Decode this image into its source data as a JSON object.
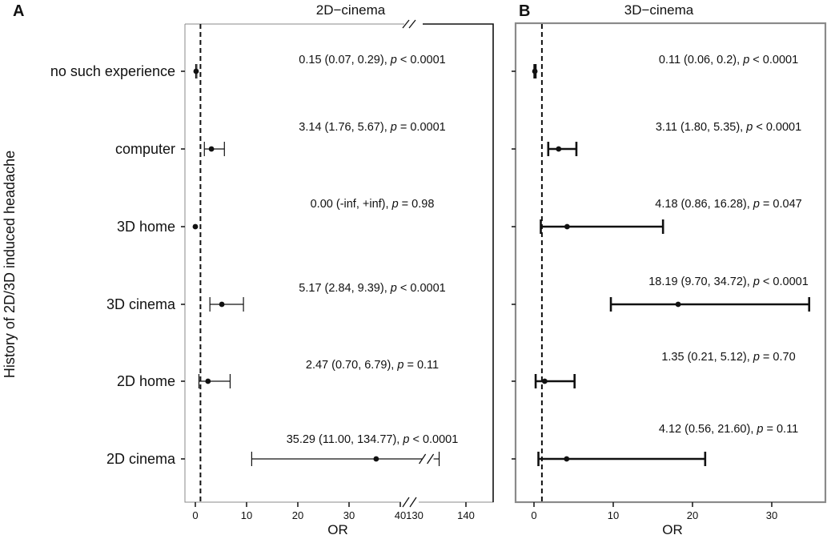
{
  "figure": {
    "ylabel": "History of 2D/3D induced headache",
    "categories": [
      "no such experience",
      "computer",
      "3D home",
      "3D cinema",
      "2D home",
      "2D cinema"
    ]
  },
  "chart_data": [
    {
      "type": "forest",
      "panel": "A",
      "title": "2D−cinema",
      "xlabel": "OR",
      "reference_line": 1,
      "axis_break": [
        44,
        126
      ],
      "xlim": [
        -2,
        147
      ],
      "xticks": [
        0,
        10,
        20,
        30,
        40,
        130,
        140
      ],
      "categories": [
        "no such experience",
        "computer",
        "3D home",
        "3D cinema",
        "2D home",
        "2D cinema"
      ],
      "points": [
        {
          "category": "no such experience",
          "or": 0.15,
          "lo": 0.07,
          "hi": 0.29,
          "est": "0.15 (0.07, 0.29), ",
          "p": "p",
          "pval": " < 0.0001"
        },
        {
          "category": "computer",
          "or": 3.14,
          "lo": 1.76,
          "hi": 5.67,
          "est": "3.14 (1.76, 5.67), ",
          "p": "p",
          "pval": " = 0.0001"
        },
        {
          "category": "3D home",
          "or": 0.0,
          "lo": null,
          "hi": null,
          "est": "0.00 (-inf, +inf), ",
          "p": "p",
          "pval": " = 0.98"
        },
        {
          "category": "3D cinema",
          "or": 5.17,
          "lo": 2.84,
          "hi": 9.39,
          "est": "5.17 (2.84, 9.39), ",
          "p": "p",
          "pval": " < 0.0001"
        },
        {
          "category": "2D home",
          "or": 2.47,
          "lo": 0.7,
          "hi": 6.79,
          "est": "2.47 (0.70, 6.79), ",
          "p": "p",
          "pval": " = 0.11"
        },
        {
          "category": "2D cinema",
          "or": 35.29,
          "lo": 11.0,
          "hi": 134.77,
          "est": "35.29 (11.00, 134.77), ",
          "p": "p",
          "pval": " < 0.0001"
        }
      ]
    },
    {
      "type": "forest",
      "panel": "B",
      "title": "3D−cinema",
      "xlabel": "OR",
      "reference_line": 1,
      "xlim": [
        -2.5,
        35
      ],
      "xticks": [
        0,
        10,
        20,
        30
      ],
      "categories": [
        "no such experience",
        "computer",
        "3D home",
        "3D cinema",
        "2D home",
        "2D cinema"
      ],
      "points": [
        {
          "category": "no such experience",
          "or": 0.11,
          "lo": 0.06,
          "hi": 0.2,
          "est": "0.11 (0.06, 0.2), ",
          "p": "p",
          "pval": " < 0.0001"
        },
        {
          "category": "computer",
          "or": 3.11,
          "lo": 1.8,
          "hi": 5.35,
          "est": "3.11 (1.80, 5.35), ",
          "p": "p",
          "pval": " < 0.0001"
        },
        {
          "category": "3D home",
          "or": 4.18,
          "lo": 0.86,
          "hi": 16.28,
          "est": "4.18 (0.86, 16.28), ",
          "p": "p",
          "pval": " = 0.047"
        },
        {
          "category": "3D cinema",
          "or": 18.19,
          "lo": 9.7,
          "hi": 34.72,
          "est": "18.19 (9.70, 34.72), ",
          "p": "p",
          "pval": " < 0.0001"
        },
        {
          "category": "2D home",
          "or": 1.35,
          "lo": 0.21,
          "hi": 5.12,
          "est": "1.35 (0.21, 5.12), ",
          "p": "p",
          "pval": " = 0.70"
        },
        {
          "category": "2D cinema",
          "or": 4.12,
          "lo": 0.56,
          "hi": 21.6,
          "est": "4.12 (0.56, 21.60), ",
          "p": "p",
          "pval": " = 0.11"
        }
      ]
    }
  ]
}
